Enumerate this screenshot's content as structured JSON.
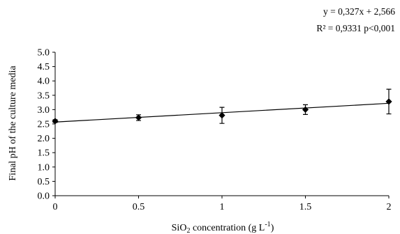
{
  "chart_data": {
    "type": "scatter",
    "xlabel_main": "SiO",
    "xlabel_sub": "2",
    "xlabel_mid": " concentration (g L",
    "xlabel_sup": "-1",
    "xlabel_end": ")",
    "ylabel": "Final pH of the culture media",
    "xlim": [
      0,
      2
    ],
    "ylim": [
      0.0,
      5.0
    ],
    "x_ticks": [
      "0",
      "0.5",
      "1",
      "1.5",
      "2"
    ],
    "x_tick_values": [
      0,
      0.5,
      1,
      1.5,
      2
    ],
    "y_ticks": [
      "0.0",
      "0.5",
      "1.0",
      "1.5",
      "2.0",
      "2.5",
      "3.0",
      "3.5",
      "4.0",
      "4.5",
      "5.0"
    ],
    "y_tick_values": [
      0.0,
      0.5,
      1.0,
      1.5,
      2.0,
      2.5,
      3.0,
      3.5,
      4.0,
      4.5,
      5.0
    ],
    "grid": false,
    "points": [
      {
        "x": 0,
        "y": 2.6,
        "err": 0.05
      },
      {
        "x": 0.5,
        "y": 2.72,
        "err": 0.1
      },
      {
        "x": 1,
        "y": 2.8,
        "err": 0.28
      },
      {
        "x": 1.5,
        "y": 3.0,
        "err": 0.17
      },
      {
        "x": 2,
        "y": 3.28,
        "err": 0.43
      }
    ],
    "trendline": {
      "slope": 0.327,
      "intercept": 2.566
    },
    "equation_line1": "y = 0,327x + 2,566",
    "equation_line2": "R² = 0,9331 p<0,001"
  }
}
